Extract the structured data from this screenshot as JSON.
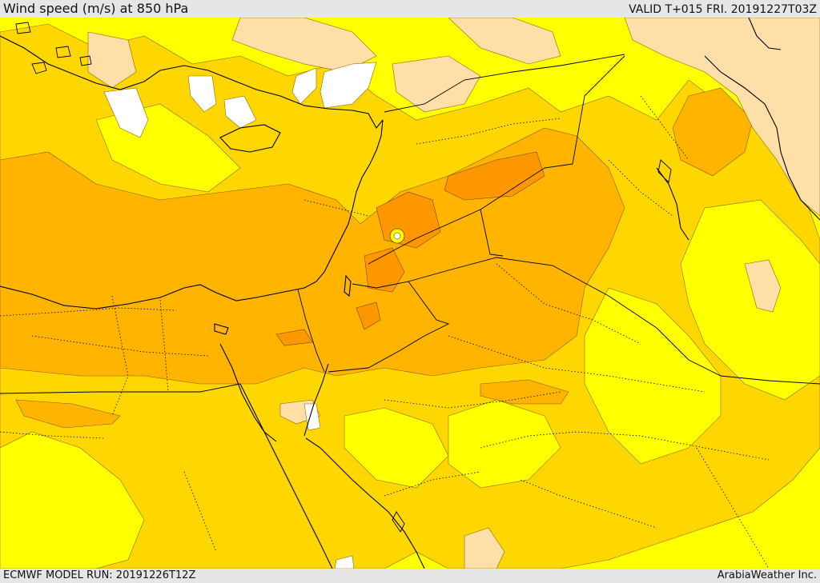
{
  "header": {
    "title": "Wind speed (m/s) at 850 hPa",
    "valid": "VALID T+015 FRI. 20191227T03Z"
  },
  "footer": {
    "model_run": "ECMWF MODEL RUN: 20191226T12Z",
    "credit": "ArabiaWeather Inc."
  },
  "map": {
    "field": "wind speed at 850 hPa",
    "palette": {
      "calm": "#ffffff",
      "light": "#ffdfa8",
      "moderate": "#ffff00",
      "fresh": "#ffd700",
      "strong": "#ffb400",
      "very_strong": "#ff9700"
    },
    "coastline_color": "#000000",
    "border_style": "dotted"
  }
}
